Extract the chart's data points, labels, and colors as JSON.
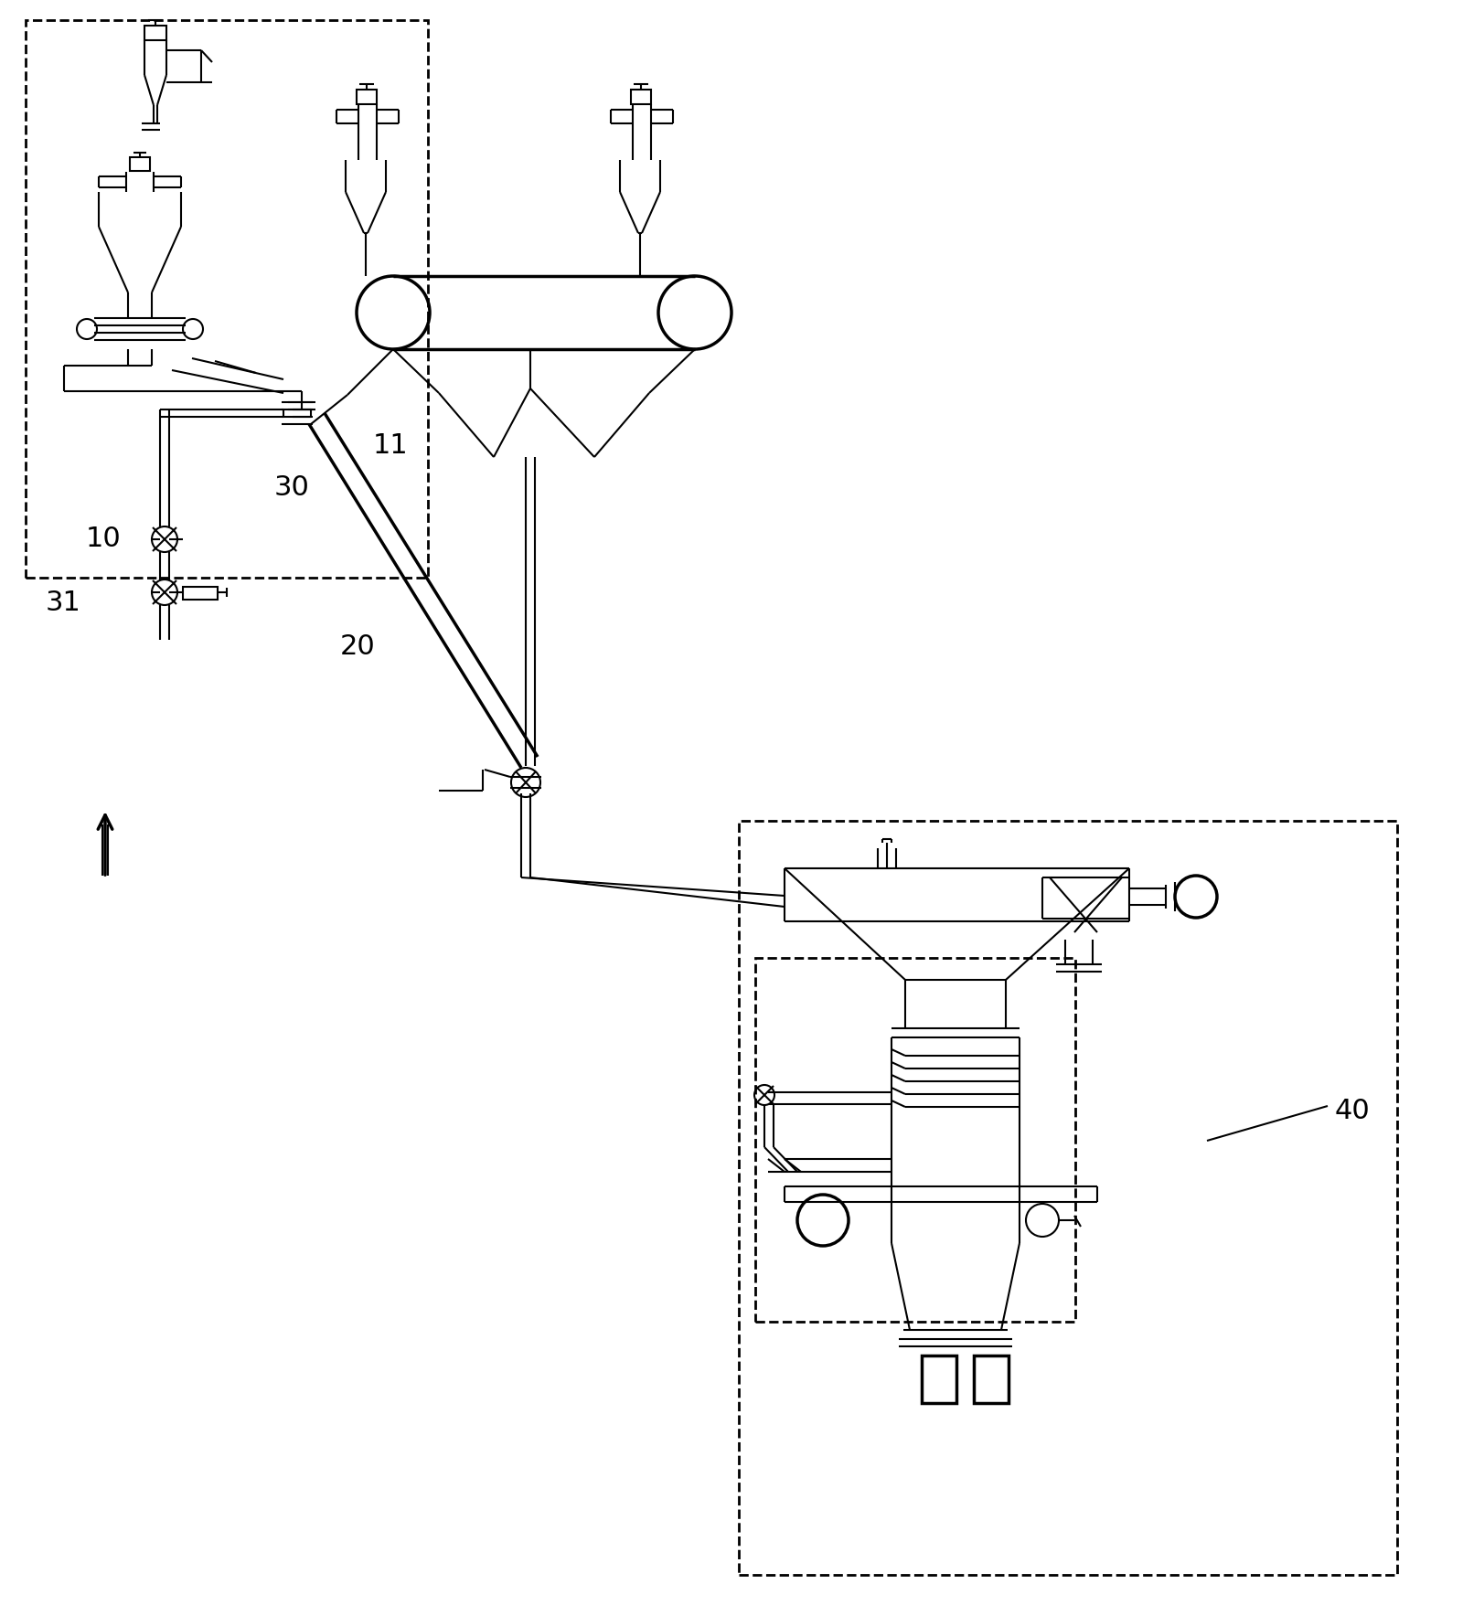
{
  "bg_color": "#ffffff",
  "line_color": "#000000",
  "line_width": 1.5,
  "thick_line": 2.5,
  "dashed_lw": 2.0,
  "label_fontsize": 22,
  "figsize": [
    16.23,
    17.68
  ],
  "dpi": 100,
  "xlim": [
    0,
    1623
  ],
  "ylim": [
    0,
    1768
  ]
}
